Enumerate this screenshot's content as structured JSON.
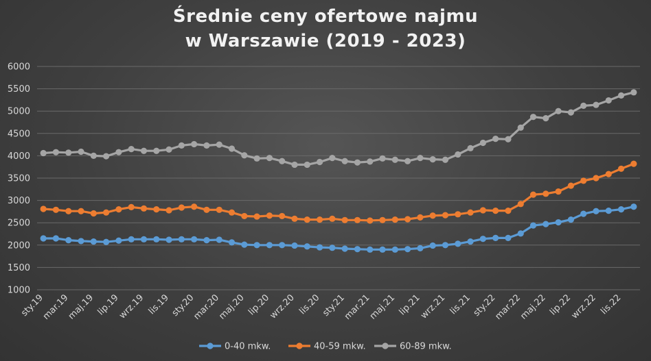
{
  "chart_data": {
    "type": "line",
    "title": [
      "Średnie ceny ofertowe najmu",
      "w Warszawie (2019 - 2023)"
    ],
    "ylim": [
      1000,
      6000
    ],
    "yticks": [
      1000,
      1500,
      2000,
      2500,
      3000,
      3500,
      4000,
      4500,
      5000,
      5500,
      6000
    ],
    "x_tick_labels": [
      "sty.19",
      "mar.19",
      "maj.19",
      "lip.19",
      "wrz.19",
      "lis.19",
      "sty.20",
      "mar.20",
      "maj.20",
      "lip.20",
      "wrz.20",
      "lis.20",
      "sty.21",
      "mar.21",
      "maj.21",
      "lip.21",
      "wrz.21",
      "lis.21",
      "sty.22",
      "mar.22",
      "maj.22",
      "lip.22",
      "wrz.22",
      "lis.22"
    ],
    "num_points": 48,
    "grid": true,
    "legend_position": "bottom",
    "series": [
      {
        "name": "0-40 mkw.",
        "color": "#5b9bd5",
        "values": [
          2150,
          2150,
          2110,
          2090,
          2080,
          2070,
          2100,
          2130,
          2130,
          2130,
          2120,
          2130,
          2130,
          2110,
          2120,
          2060,
          2010,
          2000,
          2000,
          2000,
          1990,
          1970,
          1950,
          1940,
          1920,
          1910,
          1900,
          1900,
          1900,
          1910,
          1930,
          1990,
          2000,
          2030,
          2080,
          2140,
          2160,
          2160,
          2260,
          2440,
          2470,
          2510,
          2570,
          2700,
          2760,
          2770,
          2800,
          2860
        ]
      },
      {
        "name": "40-59 mkw.",
        "color": "#ed7d31",
        "values": [
          2810,
          2790,
          2760,
          2760,
          2710,
          2730,
          2800,
          2850,
          2820,
          2800,
          2780,
          2840,
          2860,
          2790,
          2790,
          2730,
          2650,
          2640,
          2660,
          2650,
          2590,
          2570,
          2570,
          2590,
          2560,
          2560,
          2550,
          2560,
          2570,
          2580,
          2620,
          2660,
          2670,
          2690,
          2730,
          2780,
          2770,
          2770,
          2920,
          3130,
          3150,
          3200,
          3330,
          3440,
          3500,
          3590,
          3710,
          3820
        ]
      },
      {
        "name": "60-89 mkw.",
        "color": "#a5a5a5",
        "values": [
          4060,
          4080,
          4070,
          4090,
          4000,
          3990,
          4080,
          4150,
          4110,
          4110,
          4140,
          4230,
          4260,
          4230,
          4250,
          4160,
          4010,
          3940,
          3950,
          3880,
          3800,
          3800,
          3860,
          3950,
          3880,
          3850,
          3870,
          3940,
          3910,
          3880,
          3950,
          3920,
          3910,
          4030,
          4170,
          4290,
          4380,
          4370,
          4630,
          4870,
          4840,
          5000,
          4970,
          5120,
          5140,
          5240,
          5350,
          5420
        ]
      }
    ]
  }
}
